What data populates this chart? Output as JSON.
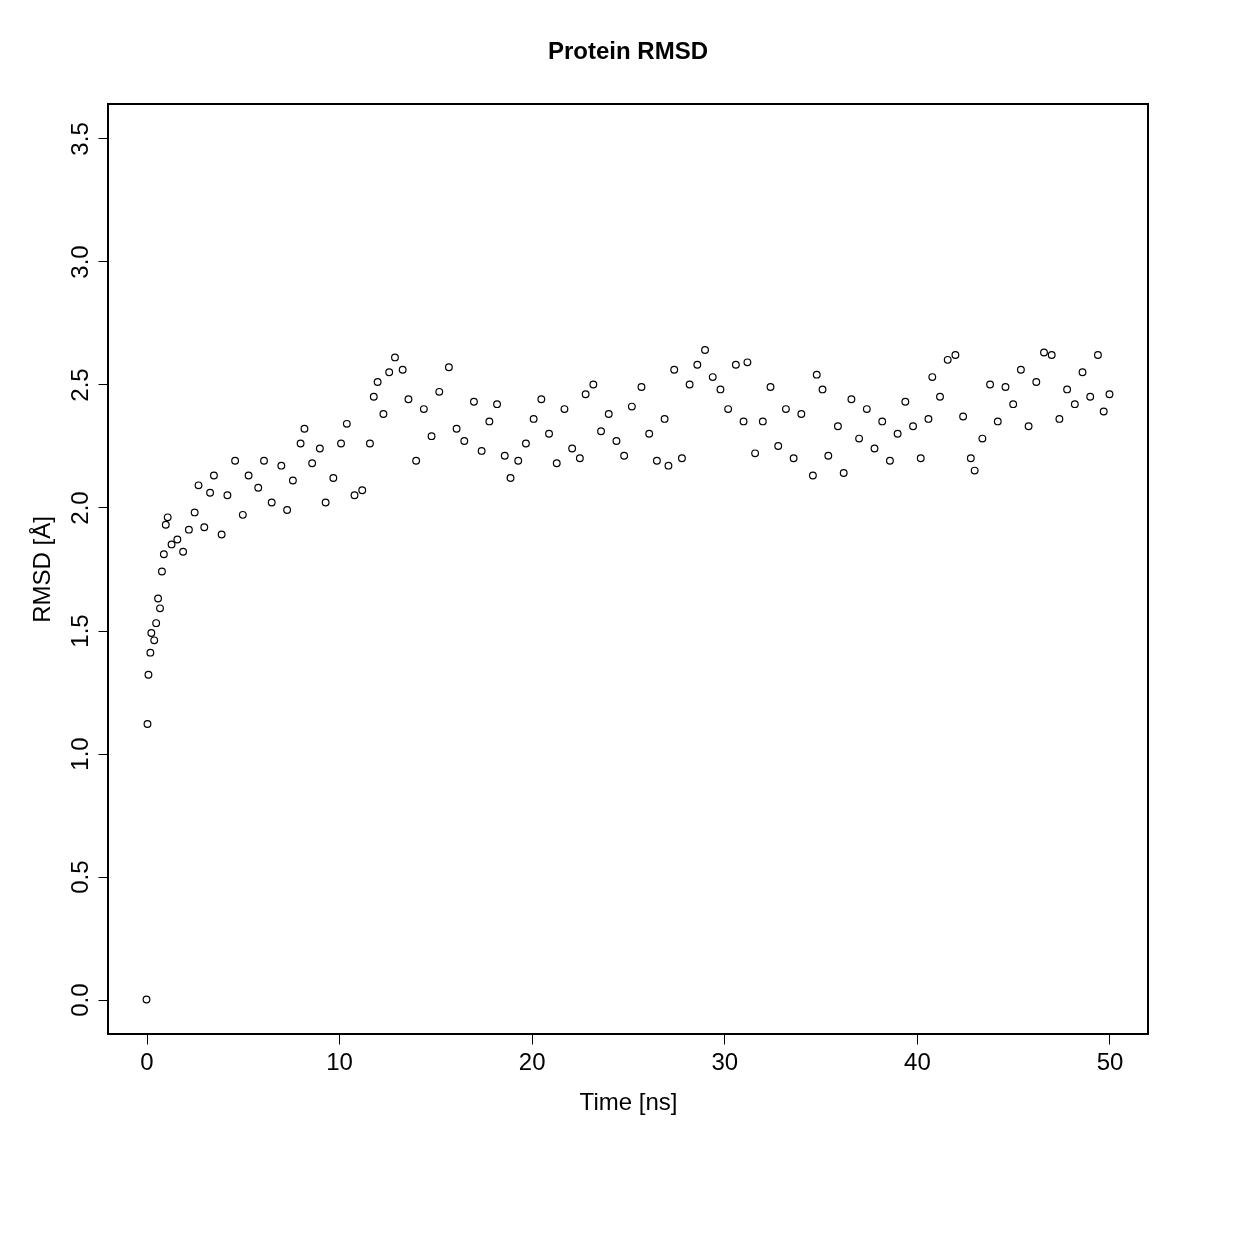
{
  "chart_data": {
    "type": "scatter",
    "title": "Protein RMSD",
    "xlabel": "Time [ns]",
    "ylabel": "RMSD [Å]",
    "xlim": [
      -2,
      52
    ],
    "ylim": [
      -0.14,
      3.64
    ],
    "xticks": [
      0,
      10,
      20,
      30,
      40,
      50
    ],
    "yticks": [
      {
        "value": 0,
        "label": "0.0"
      },
      {
        "value": 0.5,
        "label": "0.5"
      },
      {
        "value": 1,
        "label": "1.0"
      },
      {
        "value": 1.5,
        "label": "1.5"
      },
      {
        "value": 2,
        "label": "2.0"
      },
      {
        "value": 2.5,
        "label": "2.5"
      },
      {
        "value": 3,
        "label": "3.0"
      },
      {
        "value": 3.5,
        "label": "3.5"
      }
    ],
    "grid": false,
    "legend": false,
    "marker": "circle",
    "x": [
      0,
      0.05,
      0.1,
      0.2,
      0.25,
      0.4,
      0.5,
      0.6,
      0.7,
      0.8,
      0.9,
      1.0,
      1.1,
      1.3,
      1.6,
      1.9,
      2.2,
      2.5,
      2.7,
      3.0,
      3.3,
      3.5,
      3.9,
      4.2,
      4.6,
      5.0,
      5.3,
      5.8,
      6.1,
      6.5,
      7.0,
      7.3,
      7.6,
      8.0,
      8.2,
      8.6,
      9.0,
      9.3,
      9.7,
      10.1,
      10.4,
      10.8,
      11.2,
      11.6,
      11.8,
      12.0,
      12.3,
      12.6,
      12.9,
      13.3,
      13.6,
      14.0,
      14.4,
      14.8,
      15.2,
      15.7,
      16.1,
      16.5,
      17.0,
      17.4,
      17.8,
      18.2,
      18.6,
      18.9,
      19.3,
      19.7,
      20.1,
      20.5,
      20.9,
      21.3,
      21.7,
      22.1,
      22.5,
      22.8,
      23.2,
      23.6,
      24.0,
      24.4,
      24.8,
      25.2,
      25.7,
      26.1,
      26.5,
      26.9,
      27.1,
      27.4,
      27.8,
      28.2,
      28.6,
      29.0,
      29.4,
      29.8,
      30.2,
      30.6,
      31.0,
      31.2,
      31.6,
      32.0,
      32.4,
      32.8,
      33.2,
      33.6,
      34.0,
      34.6,
      34.8,
      35.1,
      35.4,
      35.9,
      36.2,
      36.6,
      37.0,
      37.4,
      37.8,
      38.2,
      38.6,
      39.0,
      39.4,
      39.8,
      40.2,
      40.6,
      40.8,
      41.2,
      41.6,
      42.0,
      42.4,
      42.8,
      43.0,
      43.4,
      43.8,
      44.2,
      44.6,
      45.0,
      45.4,
      45.8,
      46.2,
      46.6,
      47.0,
      47.4,
      47.8,
      48.2,
      48.6,
      49.0,
      49.4,
      49.7,
      50.0
    ],
    "series": [
      {
        "color": "#000000",
        "values": [
          0.0,
          1.12,
          1.32,
          1.41,
          1.49,
          1.46,
          1.53,
          1.63,
          1.59,
          1.74,
          1.81,
          1.93,
          1.96,
          1.85,
          1.87,
          1.82,
          1.91,
          1.98,
          2.09,
          1.92,
          2.06,
          2.13,
          1.89,
          2.05,
          2.19,
          1.97,
          2.13,
          2.08,
          2.19,
          2.02,
          2.17,
          1.99,
          2.11,
          2.26,
          2.32,
          2.18,
          2.24,
          2.02,
          2.12,
          2.26,
          2.34,
          2.05,
          2.07,
          2.26,
          2.45,
          2.51,
          2.38,
          2.55,
          2.61,
          2.56,
          2.44,
          2.19,
          2.4,
          2.29,
          2.47,
          2.57,
          2.32,
          2.27,
          2.43,
          2.23,
          2.35,
          2.42,
          2.21,
          2.12,
          2.19,
          2.26,
          2.36,
          2.44,
          2.3,
          2.18,
          2.4,
          2.24,
          2.2,
          2.46,
          2.5,
          2.31,
          2.38,
          2.27,
          2.21,
          2.41,
          2.49,
          2.3,
          2.19,
          2.36,
          2.17,
          2.56,
          2.2,
          2.5,
          2.58,
          2.64,
          2.53,
          2.48,
          2.4,
          2.58,
          2.35,
          2.59,
          2.22,
          2.35,
          2.49,
          2.25,
          2.4,
          2.2,
          2.38,
          2.13,
          2.54,
          2.48,
          2.21,
          2.33,
          2.14,
          2.44,
          2.28,
          2.4,
          2.24,
          2.35,
          2.19,
          2.3,
          2.43,
          2.33,
          2.2,
          2.36,
          2.53,
          2.45,
          2.6,
          2.62,
          2.37,
          2.2,
          2.15,
          2.28,
          2.5,
          2.35,
          2.49,
          2.42,
          2.56,
          2.33,
          2.51,
          2.63,
          2.62,
          2.36,
          2.48,
          2.42,
          2.55,
          2.45,
          2.62,
          2.39,
          2.46
        ]
      }
    ]
  }
}
